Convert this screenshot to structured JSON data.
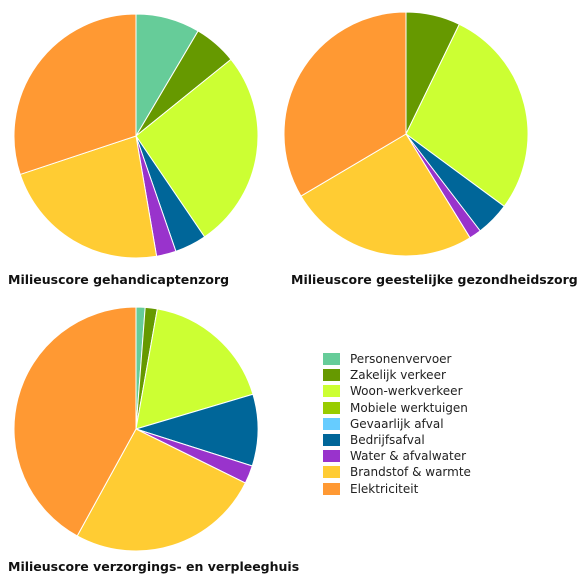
{
  "legend": [
    {
      "label": "Personenvervoer",
      "color": "#66cc99"
    },
    {
      "label": "Zakelijk verkeer",
      "color": "#669900"
    },
    {
      "label": "Woon-werkverkeer",
      "color": "#ccff33"
    },
    {
      "label": "Mobiele werktuigen",
      "color": "#99cc00"
    },
    {
      "label": "Gevaarlijk afval",
      "color": "#66ccff"
    },
    {
      "label": "Bedrijfsafval",
      "color": "#006699"
    },
    {
      "label": "Water & afvalwater",
      "color": "#9933cc"
    },
    {
      "label": "Brandstof & warmte",
      "color": "#ffcc33"
    },
    {
      "label": "Elektriciteit",
      "color": "#ff9933"
    }
  ],
  "chart_data": [
    {
      "type": "pie",
      "title": "Milieuscore gehandicaptenzorg",
      "slices": [
        {
          "label": "Personenvervoer",
          "value": 8.5
        },
        {
          "label": "Zakelijk verkeer",
          "value": 5.7
        },
        {
          "label": "Woon-werkverkeer",
          "value": 26.3
        },
        {
          "label": "Mobiele werktuigen",
          "value": 0
        },
        {
          "label": "Gevaarlijk afval",
          "value": 0
        },
        {
          "label": "Bedrijfsafval",
          "value": 4.2
        },
        {
          "label": "Water & afvalwater",
          "value": 2.6
        },
        {
          "label": "Brandstof & warmte",
          "value": 22.6
        },
        {
          "label": "Elektriciteit",
          "value": 30.1
        }
      ]
    },
    {
      "type": "pie",
      "title": "Milieuscore geestelijke gezondheidszorg",
      "slices": [
        {
          "label": "Personenvervoer",
          "value": 0
        },
        {
          "label": "Zakelijk verkeer",
          "value": 7.2
        },
        {
          "label": "Woon-werkverkeer",
          "value": 27.9
        },
        {
          "label": "Mobiele werktuigen",
          "value": 0
        },
        {
          "label": "Gevaarlijk afval",
          "value": 0
        },
        {
          "label": "Bedrijfsafval",
          "value": 4.5
        },
        {
          "label": "Water & afvalwater",
          "value": 1.6
        },
        {
          "label": "Brandstof & warmte",
          "value": 25.3
        },
        {
          "label": "Elektriciteit",
          "value": 33.5
        }
      ]
    },
    {
      "type": "pie",
      "title": "Milieuscore verzorgings- en verpleeghuis",
      "slices": [
        {
          "label": "Personenvervoer",
          "value": 1.2
        },
        {
          "label": "Zakelijk verkeer",
          "value": 1.6
        },
        {
          "label": "Woon-werkverkeer",
          "value": 17.6
        },
        {
          "label": "Mobiele werktuigen",
          "value": 0
        },
        {
          "label": "Gevaarlijk afval",
          "value": 0
        },
        {
          "label": "Bedrijfsafval",
          "value": 9.5
        },
        {
          "label": "Water & afvalwater",
          "value": 2.4
        },
        {
          "label": "Brandstof & warmte",
          "value": 25.7
        },
        {
          "label": "Elektriciteit",
          "value": 42.0
        }
      ]
    }
  ]
}
